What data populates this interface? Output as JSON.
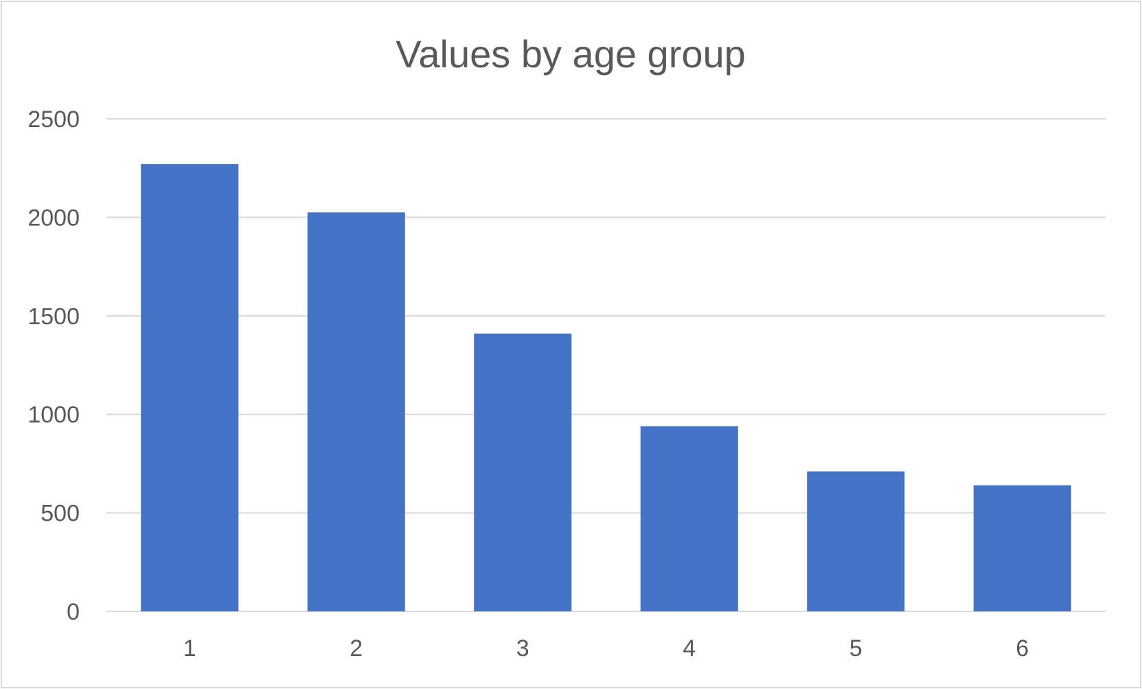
{
  "chart_data": {
    "type": "bar",
    "title": "Values by age group",
    "xlabel": "",
    "ylabel": "",
    "categories": [
      "1",
      "2",
      "3",
      "4",
      "5",
      "6"
    ],
    "series": [
      {
        "values": [
          2270,
          2025,
          1410,
          940,
          710,
          640
        ],
        "color": "#4472c4"
      }
    ],
    "ylim": [
      0,
      2500
    ],
    "yticks": [
      0,
      500,
      1000,
      1500,
      2000,
      2500
    ],
    "ytick_labels": [
      "0",
      "500",
      "1000",
      "1500",
      "2000",
      "2500"
    ],
    "grid": true,
    "legend": "none"
  }
}
